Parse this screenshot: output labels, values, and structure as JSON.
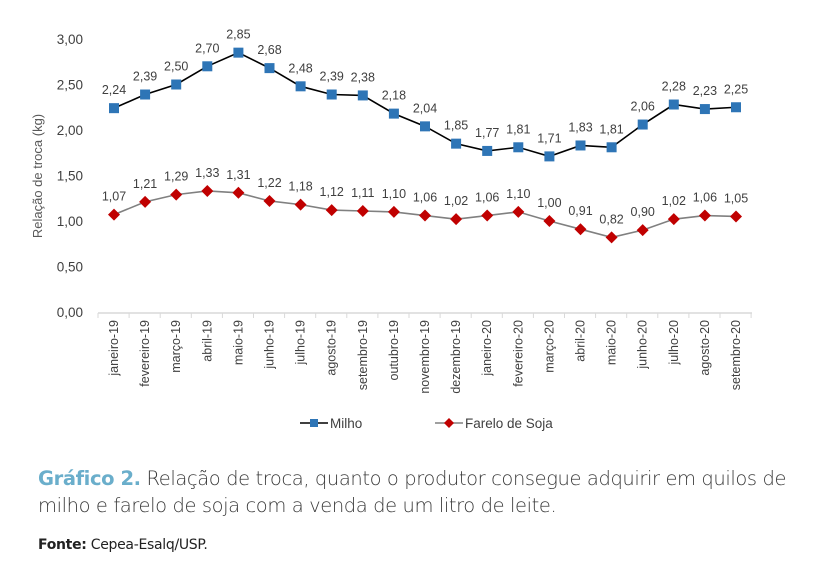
{
  "chart_data": {
    "type": "line",
    "title": "",
    "ylabel": "Relação de troca (kg)",
    "xlabel": "",
    "ylim": [
      0,
      3
    ],
    "yticks": [
      "0,00",
      "0,50",
      "1,00",
      "1,50",
      "2,00",
      "2,50",
      "3,00"
    ],
    "grid": false,
    "legend": "bottom",
    "categories": [
      "janeiro-19",
      "fevereiro-19",
      "março-19",
      "abril-19",
      "maio-19",
      "junho-19",
      "julho-19",
      "agosto-19",
      "setembro-19",
      "outubro-19",
      "novembro-19",
      "dezembro-19",
      "janeiro-20",
      "fevereiro-20",
      "março-20",
      "abril-20",
      "maio-20",
      "junho-20",
      "julho-20",
      "agosto-20",
      "setembro-20"
    ],
    "series": [
      {
        "name": "Milho",
        "color": "#2e75b6",
        "line_color": "#000000",
        "marker": "square",
        "values": [
          2.24,
          2.39,
          2.5,
          2.7,
          2.85,
          2.68,
          2.48,
          2.39,
          2.38,
          2.18,
          2.04,
          1.85,
          1.77,
          1.81,
          1.71,
          1.83,
          1.81,
          2.06,
          2.28,
          2.23,
          2.25
        ],
        "labels": [
          "2,24",
          "2,39",
          "2,50",
          "2,70",
          "2,85",
          "2,68",
          "2,48",
          "2,39",
          "2,38",
          "2,18",
          "2,04",
          "1,85",
          "1,77",
          "1,81",
          "1,71",
          "1,83",
          "1,81",
          "2,06",
          "2,28",
          "2,23",
          "2,25"
        ]
      },
      {
        "name": "Farelo de Soja",
        "color": "#c00000",
        "line_color": "#808080",
        "marker": "diamond",
        "values": [
          1.07,
          1.21,
          1.29,
          1.33,
          1.31,
          1.22,
          1.18,
          1.12,
          1.11,
          1.1,
          1.06,
          1.02,
          1.06,
          1.1,
          1.0,
          0.91,
          0.82,
          0.9,
          1.02,
          1.06,
          1.05
        ],
        "labels": [
          "1,07",
          "1,21",
          "1,29",
          "1,33",
          "1,31",
          "1,22",
          "1,18",
          "1,12",
          "1,11",
          "1,10",
          "1,06",
          "1,02",
          "1,06",
          "1,10",
          "1,00",
          "0,91",
          "0,82",
          "0,90",
          "1,02",
          "1,06",
          "1,05"
        ]
      }
    ]
  },
  "caption": {
    "lead": "Gráfico 2.",
    "text": " Relação de troca, quanto o produtor consegue adquirir em quilos de milho e farelo de soja com a venda de um litro de leite."
  },
  "source": {
    "label": "Fonte:",
    "text": " Cepea-Esalq/USP."
  }
}
